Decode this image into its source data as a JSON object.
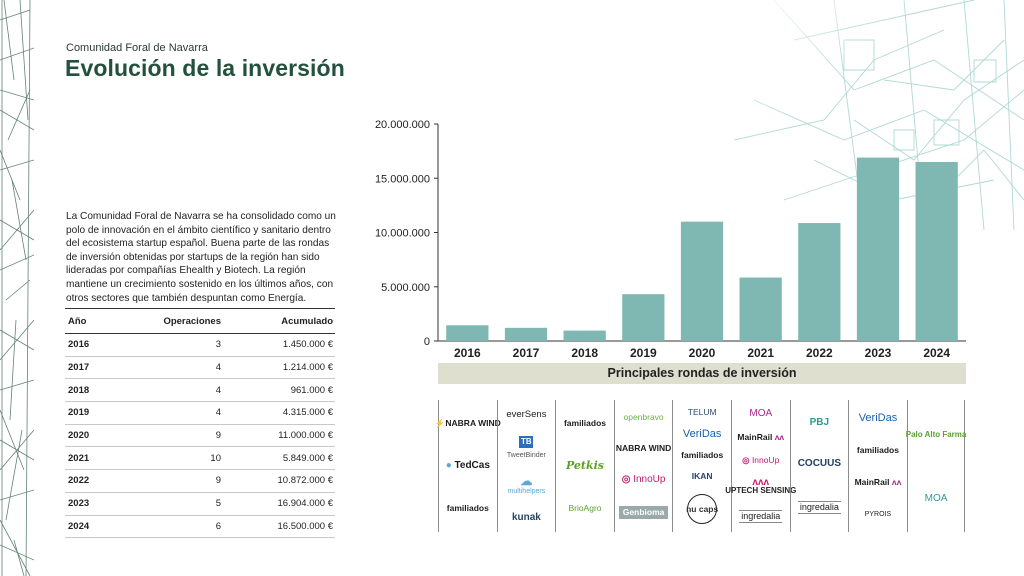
{
  "header": {
    "subtitle": "Comunidad Foral de Navarra",
    "title": "Evolución de la inversión"
  },
  "intro": "La Comunidad Foral de Navarra se ha consolidado como un polo de innovación en el ámbito científico y sanitario dentro del ecosistema startup español. Buena parte de las rondas de inversión obtenidas por startups de la región han sido lideradas por compañías Ehealth y Biotech. La región mantiene un crecimiento sostenido en los últimos años, con otros sectores que también despuntan como Energía.",
  "table": {
    "headers": [
      "Año",
      "Operaciones",
      "Acumulado"
    ],
    "rows": [
      [
        "2016",
        "3",
        "1.450.000 €"
      ],
      [
        "2017",
        "4",
        "1.214.000 €"
      ],
      [
        "2018",
        "4",
        "961.000 €"
      ],
      [
        "2019",
        "4",
        "4.315.000 €"
      ],
      [
        "2020",
        "9",
        "11.000.000 €"
      ],
      [
        "2021",
        "10",
        "5.849.000 €"
      ],
      [
        "2022",
        "9",
        "10.872.000 €"
      ],
      [
        "2023",
        "5",
        "16.904.000 €"
      ],
      [
        "2024",
        "6",
        "16.500.000 €"
      ]
    ]
  },
  "chart_data": {
    "type": "bar",
    "categories": [
      "2016",
      "2017",
      "2018",
      "2019",
      "2020",
      "2021",
      "2022",
      "2023",
      "2024"
    ],
    "values": [
      1450000,
      1214000,
      961000,
      4315000,
      11000000,
      5849000,
      10872000,
      16904000,
      16500000
    ],
    "title": "",
    "xlabel": "",
    "ylabel": "",
    "ylim": [
      0,
      20000000
    ],
    "yticks": [
      0,
      5000000,
      10000000,
      15000000,
      20000000
    ],
    "ytick_labels": [
      "0",
      "5.000.000",
      "10.000.000",
      "15.000.000",
      "20.000.000"
    ],
    "grid": false,
    "bar_color": "#7fb7b2"
  },
  "rounds": {
    "title": "Principales rondas de inversión",
    "columns": [
      [
        "NABRA WIND",
        "TedCas",
        "familiados"
      ],
      [
        "everSens",
        "TweetBinder",
        "multihelpers",
        "kunak"
      ],
      [
        "familiados",
        "Petkis",
        "BrioAgro"
      ],
      [
        "openbravo",
        "NABRA WIND",
        "InnoUp",
        "Genbioma"
      ],
      [
        "TELUM",
        "VeriDas",
        "familiados",
        "IKAN",
        "nu caps"
      ],
      [
        "MOA",
        "MainRail",
        "InnoUp",
        "UPTECH SENSING",
        "ingredalia"
      ],
      [
        "PBJ",
        "COCUUS",
        "ingredalia"
      ],
      [
        "VeriDas",
        "familiados",
        "MainRail",
        "PYROIS"
      ],
      [
        "Palo Alto Farma",
        "MOA"
      ]
    ]
  },
  "colors": {
    "title": "#23513c",
    "bars": "#7fb7b2",
    "rounds_bar": "#dedfcf",
    "map_lines": "#8fc8c2"
  }
}
